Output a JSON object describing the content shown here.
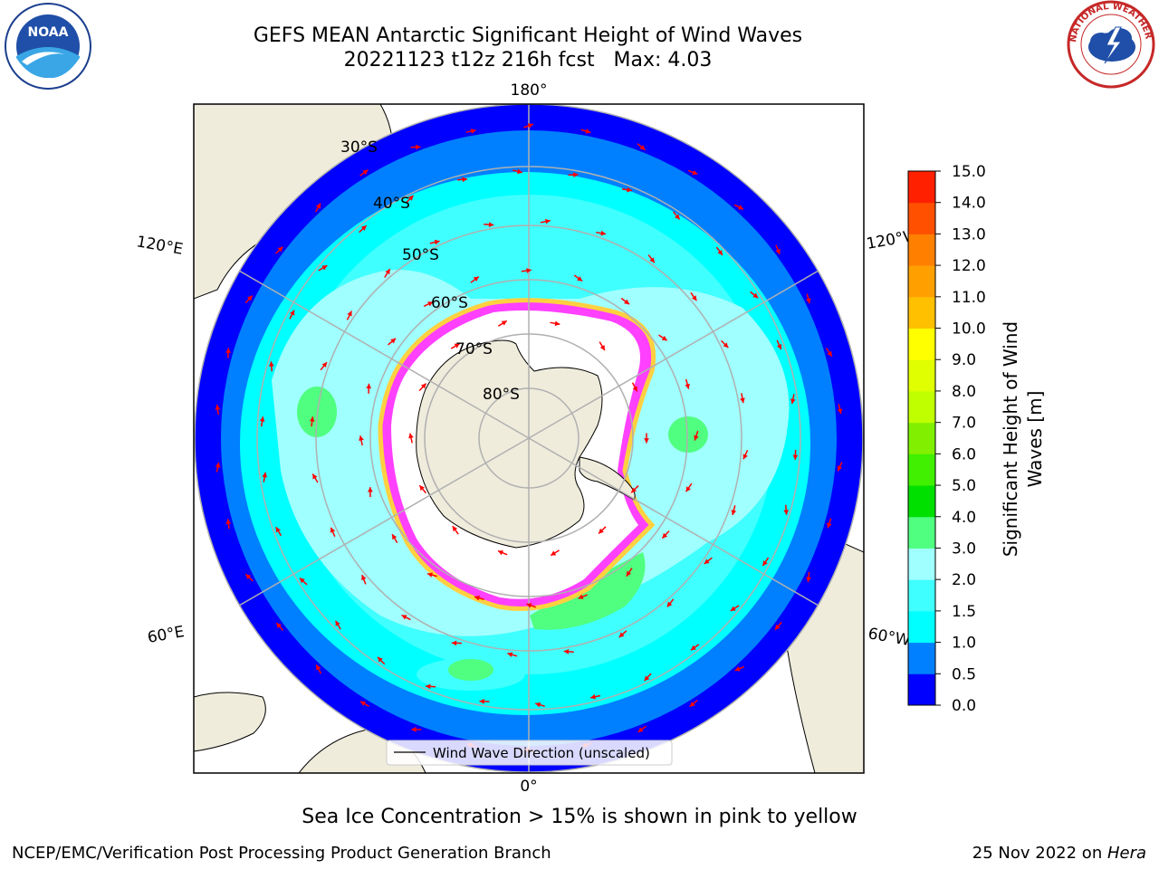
{
  "title": {
    "line1": "GEFS MEAN Antarctic Significant Height of Wind Waves",
    "line2": "20221123 t12z 216h fcst   Max: 4.03"
  },
  "logos": {
    "left_icon": "noaa-logo",
    "left_text": "NOAA",
    "right_icon": "national-weather-service-logo",
    "right_text": "NATIONAL WEATHER SERVICE"
  },
  "map": {
    "projection": "south-polar-stereographic",
    "lon_labels": {
      "top": "180°",
      "bottom": "0°",
      "left_upper": "120°E",
      "left_lower": "60°E",
      "right_upper": "120°W",
      "right_lower": "60°W"
    },
    "lat_labels": [
      "30°S",
      "40°S",
      "50°S",
      "60°S",
      "70°S",
      "80°S"
    ],
    "legend_label": "Wind Wave Direction (unscaled)",
    "arrow_color": "#ff0000"
  },
  "colorbar": {
    "label_line1": "Significant Height of Wind",
    "label_line2": "Waves [m]",
    "ticks": [
      "0.0",
      "0.5",
      "1.0",
      "1.5",
      "2.0",
      "3.0",
      "4.0",
      "5.0",
      "6.0",
      "7.0",
      "8.0",
      "9.0",
      "10.0",
      "11.0",
      "12.0",
      "13.0",
      "14.0",
      "15.0"
    ],
    "colors": [
      "#0000ff",
      "#0080ff",
      "#00ffff",
      "#40ffff",
      "#a0ffff",
      "#50ff80",
      "#00e000",
      "#40f000",
      "#80f000",
      "#c0ff00",
      "#e0ff00",
      "#ffff00",
      "#ffc000",
      "#ffa000",
      "#ff8000",
      "#ff5000",
      "#ff2000"
    ]
  },
  "caption": "Sea Ice Concentration > 15% is shown in pink to yellow",
  "footer": {
    "left": "NCEP/EMC/Verification Post Processing Product Generation Branch",
    "right_prefix": "25 Nov 2022 on ",
    "right_host": "Hera"
  }
}
